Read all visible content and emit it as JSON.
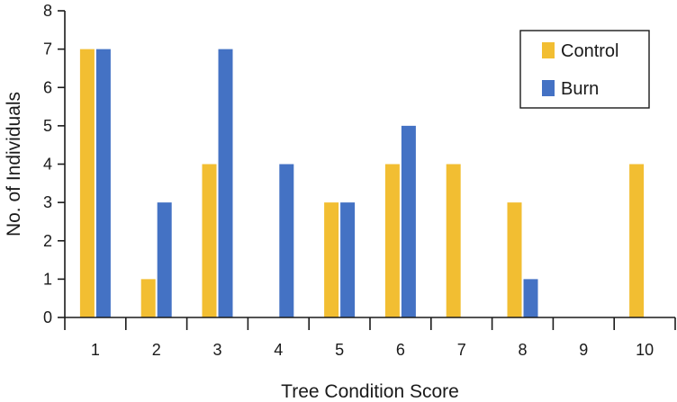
{
  "chart_data": {
    "type": "bar",
    "title": "",
    "xlabel": "Tree Condition Score",
    "ylabel": "No. of Individuals",
    "categories": [
      "1",
      "2",
      "3",
      "4",
      "5",
      "6",
      "7",
      "8",
      "9",
      "10"
    ],
    "series": [
      {
        "name": "Control",
        "color": "#F2BE32",
        "values": [
          7,
          1,
          4,
          0,
          3,
          4,
          4,
          3,
          0,
          4
        ]
      },
      {
        "name": "Burn",
        "color": "#4472C4",
        "values": [
          7,
          3,
          7,
          4,
          3,
          5,
          0,
          1,
          0,
          0
        ]
      }
    ],
    "ylim": [
      0,
      8
    ],
    "yticks": [
      "0",
      "1",
      "2",
      "3",
      "4",
      "5",
      "6",
      "7",
      "8"
    ],
    "grid": false,
    "legend_position": "top-right"
  }
}
